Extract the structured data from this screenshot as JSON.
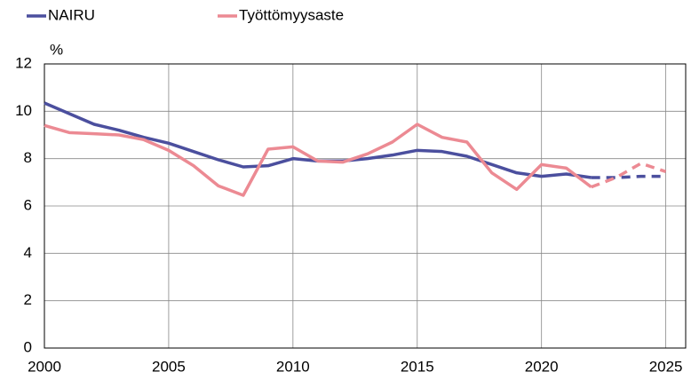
{
  "chart_data": {
    "type": "line",
    "y_label": "%",
    "x": [
      2000,
      2001,
      2002,
      2003,
      2004,
      2005,
      2006,
      2007,
      2008,
      2009,
      2010,
      2011,
      2012,
      2013,
      2014,
      2015,
      2016,
      2017,
      2018,
      2019,
      2020,
      2021,
      2022,
      2023,
      2024,
      2025
    ],
    "series": [
      {
        "name": "NAIRU",
        "color": "#4b4f9e",
        "values": [
          10.35,
          9.9,
          9.45,
          9.2,
          8.9,
          8.65,
          8.3,
          7.95,
          7.65,
          7.7,
          8.0,
          7.9,
          7.9,
          8.0,
          8.15,
          8.35,
          8.3,
          8.1,
          7.75,
          7.4,
          7.25,
          7.35,
          7.2,
          7.2,
          7.25,
          7.25
        ]
      },
      {
        "name": "Työttömyysaste",
        "color": "#ec8a93",
        "values": [
          9.4,
          9.1,
          9.05,
          9.0,
          8.8,
          8.35,
          7.7,
          6.85,
          6.45,
          8.4,
          8.5,
          7.9,
          7.85,
          8.2,
          8.7,
          9.45,
          8.9,
          8.7,
          7.4,
          6.7,
          7.75,
          7.6,
          6.8,
          7.2,
          7.8,
          7.45
        ]
      }
    ],
    "forecast_start": 2022,
    "xlim": [
      2000,
      2025.8
    ],
    "xticks": [
      2000,
      2005,
      2010,
      2015,
      2020,
      2025
    ],
    "ylim": [
      0,
      12
    ],
    "yticks": [
      0,
      2,
      4,
      6,
      8,
      10,
      12
    ],
    "grid": true,
    "legend": "top"
  }
}
